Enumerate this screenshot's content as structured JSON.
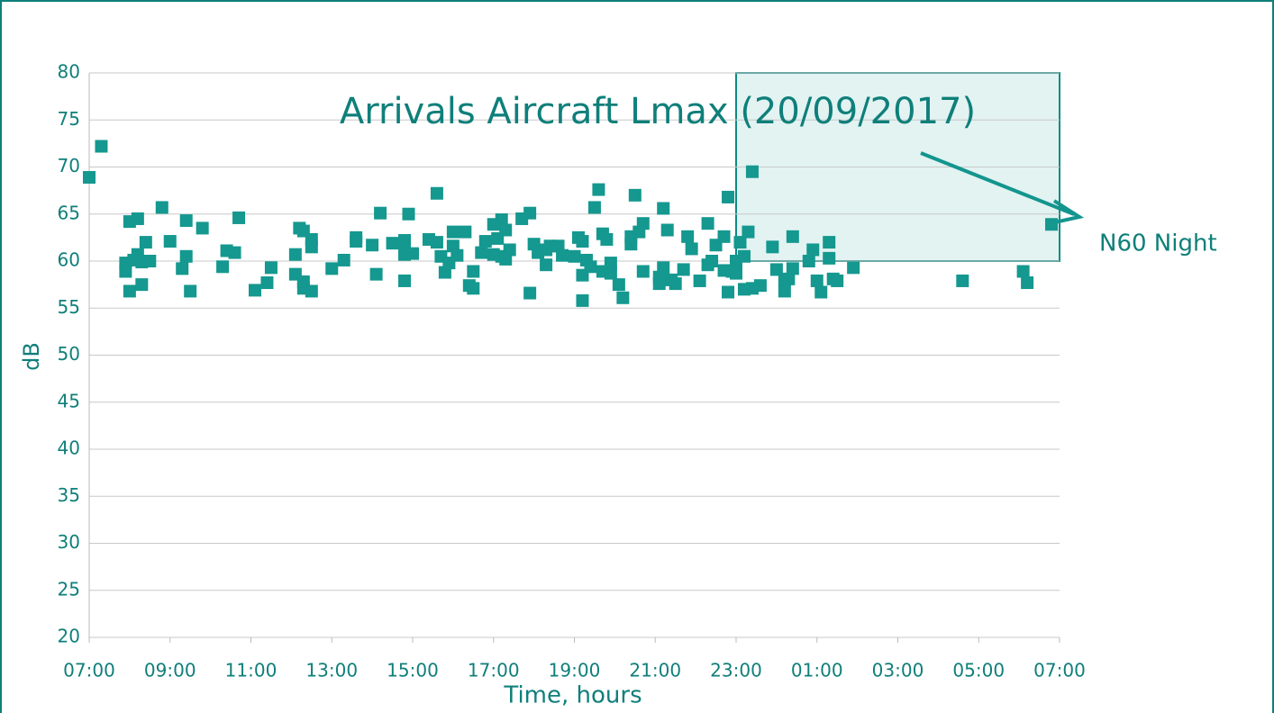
{
  "chart_data": {
    "type": "scatter",
    "title": "Arrivals Aircraft Lmax (20/09/2017)",
    "xlabel": "Time, hours",
    "ylabel": "dB",
    "annotation": "N60 Night",
    "highlight_xlim": [
      23,
      31
    ],
    "highlight_ylim": [
      60,
      80
    ],
    "color": "#14988f",
    "grid": true,
    "xlim": [
      7,
      31
    ],
    "xticks": [
      {
        "value": 7,
        "label": "07:00"
      },
      {
        "value": 9,
        "label": "09:00"
      },
      {
        "value": 11,
        "label": "11:00"
      },
      {
        "value": 13,
        "label": "13:00"
      },
      {
        "value": 15,
        "label": "15:00"
      },
      {
        "value": 17,
        "label": "17:00"
      },
      {
        "value": 19,
        "label": "19:00"
      },
      {
        "value": 21,
        "label": "21:00"
      },
      {
        "value": 23,
        "label": "23:00"
      },
      {
        "value": 25,
        "label": "01:00"
      },
      {
        "value": 27,
        "label": "03:00"
      },
      {
        "value": 29,
        "label": "05:00"
      },
      {
        "value": 31,
        "label": "07:00"
      }
    ],
    "ylim": [
      20,
      80
    ],
    "yticks": [
      20,
      25,
      30,
      35,
      40,
      45,
      50,
      55,
      60,
      65,
      70,
      75,
      80
    ],
    "x": [
      7.0,
      7.3,
      7.9,
      7.9,
      8.0,
      8.0,
      8.1,
      8.2,
      8.2,
      8.3,
      8.3,
      8.4,
      8.5,
      8.8,
      9.0,
      9.3,
      9.4,
      9.4,
      9.5,
      9.8,
      10.3,
      10.4,
      10.6,
      10.7,
      11.1,
      11.4,
      11.5,
      12.1,
      12.1,
      12.2,
      12.3,
      12.3,
      12.3,
      12.5,
      12.5,
      12.5,
      13.0,
      13.3,
      13.6,
      13.6,
      14.0,
      14.1,
      14.2,
      14.5,
      14.8,
      14.8,
      14.8,
      14.8,
      14.9,
      15.0,
      15.4,
      15.6,
      15.6,
      15.7,
      15.8,
      15.9,
      16.0,
      16.0,
      16.1,
      16.3,
      16.4,
      16.5,
      16.5,
      16.7,
      16.8,
      17.0,
      17.0,
      17.1,
      17.2,
      17.2,
      17.3,
      17.3,
      17.4,
      17.7,
      17.9,
      17.9,
      18.0,
      18.1,
      18.3,
      18.3,
      18.4,
      18.6,
      18.7,
      19.0,
      19.1,
      19.2,
      19.2,
      19.2,
      19.3,
      19.4,
      19.5,
      19.6,
      19.7,
      19.7,
      19.8,
      19.9,
      19.9,
      20.1,
      20.2,
      20.4,
      20.4,
      20.5,
      20.6,
      20.7,
      20.7,
      21.1,
      21.1,
      21.2,
      21.2,
      21.3,
      21.4,
      21.5,
      21.7,
      21.8,
      21.9,
      22.1,
      22.3,
      22.3,
      22.4,
      22.5,
      22.7,
      22.7,
      22.8,
      22.8,
      22.9,
      23.0,
      23.0,
      23.1,
      23.2,
      23.2,
      23.3,
      23.4,
      23.4,
      23.6,
      23.9,
      24.0,
      24.2,
      24.2,
      24.3,
      24.4,
      24.4,
      24.8,
      24.9,
      25.0,
      25.1,
      25.3,
      25.3,
      25.4,
      25.5,
      25.9,
      28.6,
      30.1,
      30.2,
      30.8
    ],
    "values": [
      68.9,
      72.2,
      58.9,
      59.8,
      64.2,
      56.8,
      60.1,
      60.7,
      64.5,
      57.5,
      59.9,
      62.0,
      60.0,
      65.7,
      62.1,
      59.2,
      60.5,
      64.3,
      56.8,
      63.5,
      59.4,
      61.1,
      60.9,
      64.6,
      56.9,
      57.7,
      59.3,
      58.6,
      60.7,
      63.5,
      57.1,
      57.8,
      63.2,
      56.8,
      61.5,
      62.3,
      59.2,
      60.1,
      62.5,
      62.1,
      61.7,
      58.6,
      65.1,
      61.9,
      57.9,
      60.7,
      61.4,
      62.2,
      65.0,
      60.8,
      62.3,
      67.2,
      62.0,
      60.5,
      58.8,
      59.8,
      61.6,
      63.1,
      60.6,
      63.1,
      57.4,
      58.9,
      57.1,
      60.9,
      62.1,
      60.7,
      63.9,
      62.4,
      60.5,
      64.4,
      63.3,
      60.2,
      61.2,
      64.5,
      56.6,
      65.1,
      61.8,
      60.9,
      59.6,
      61.2,
      61.6,
      61.6,
      60.6,
      60.5,
      62.5,
      58.5,
      55.8,
      62.1,
      60.1,
      59.4,
      65.7,
      67.6,
      58.9,
      62.9,
      62.3,
      58.7,
      59.8,
      57.5,
      56.1,
      61.8,
      62.6,
      67.0,
      63.1,
      58.9,
      64.0,
      58.3,
      57.6,
      59.3,
      65.6,
      63.3,
      58.0,
      57.6,
      59.1,
      62.6,
      61.3,
      57.9,
      59.6,
      64.0,
      60.0,
      61.7,
      59.0,
      62.6,
      66.8,
      56.7,
      58.9,
      60.0,
      58.7,
      62.0,
      57.0,
      60.5,
      63.1,
      57.1,
      69.5,
      57.4,
      61.5,
      59.1,
      58.0,
      56.8,
      58.1,
      62.6,
      59.2,
      60.0,
      61.2,
      57.9,
      56.7,
      62.0,
      60.3,
      58.1,
      57.9,
      59.3,
      57.9,
      58.9,
      57.7,
      63.9
    ]
  }
}
